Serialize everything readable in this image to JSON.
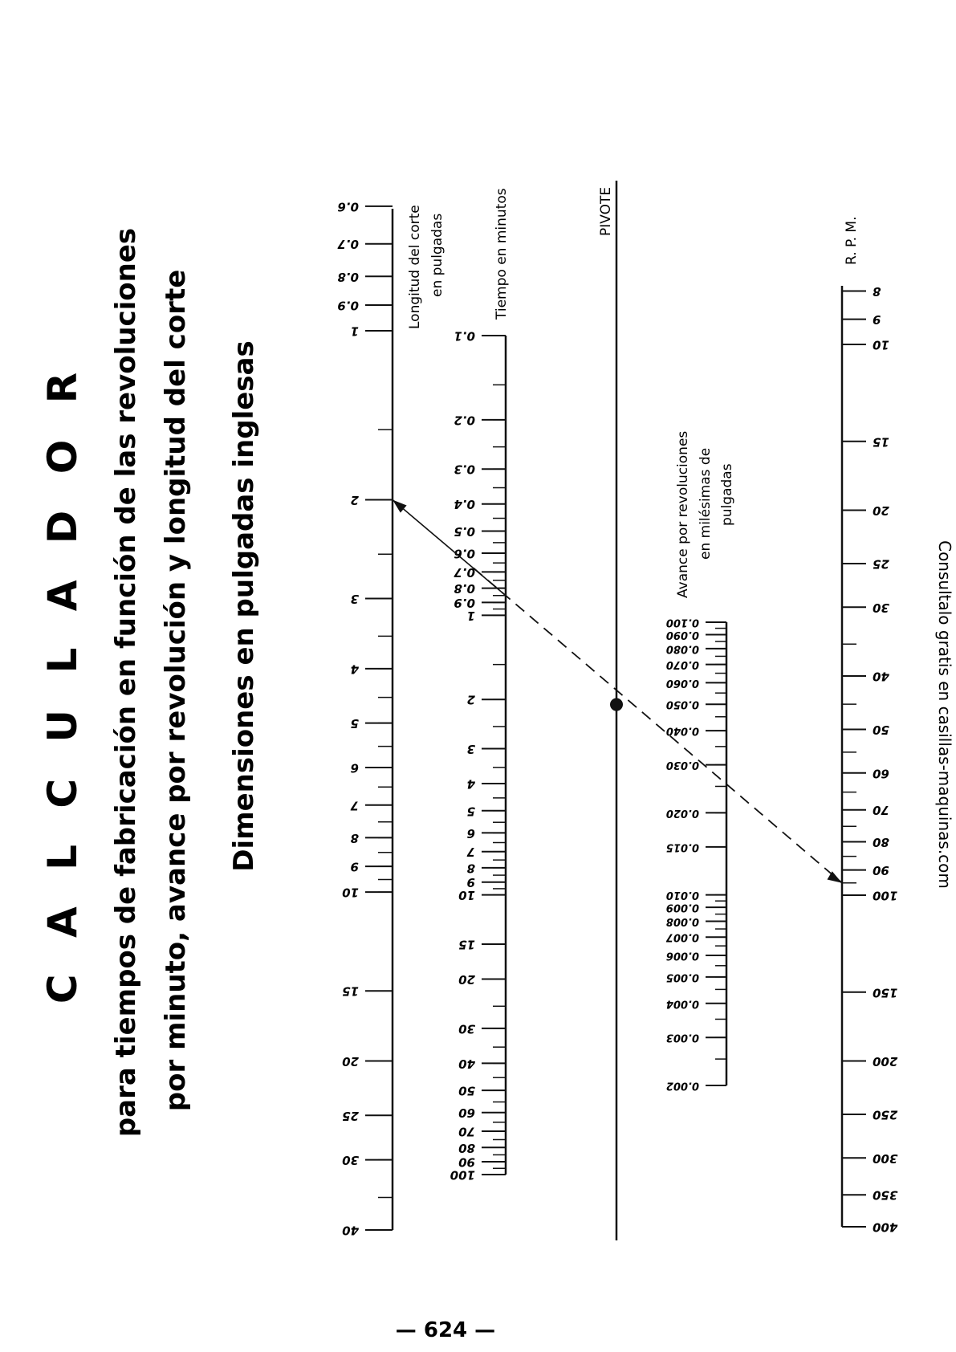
{
  "title": "C A L C U L A D O R",
  "subtitle_line1": "para tiempos de fabricación en función de las revoluciones",
  "subtitle_line2": "por minuto, avance por revolución y longitud del corte",
  "dimensions_note": "Dimensiones en pulgadas inglesas",
  "side_note": "Consultalo gratis en casillas-maquinas.com",
  "page_number": "— 624 —",
  "scales": {
    "longitud": {
      "label_line1": "Longitud del corte",
      "label_line2": "en pulgadas",
      "labels": [
        {
          "v": 0.6,
          "t": "0.6"
        },
        {
          "v": 0.7,
          "t": "0.7"
        },
        {
          "v": 0.8,
          "t": "0.8"
        },
        {
          "v": 0.9,
          "t": "0.9"
        },
        {
          "v": 1,
          "t": "1"
        },
        {
          "v": 2,
          "t": "2"
        },
        {
          "v": 3,
          "t": "3"
        },
        {
          "v": 4,
          "t": "4"
        },
        {
          "v": 5,
          "t": "5"
        },
        {
          "v": 6,
          "t": "6"
        },
        {
          "v": 7,
          "t": "7"
        },
        {
          "v": 8,
          "t": "8"
        },
        {
          "v": 9,
          "t": "9"
        },
        {
          "v": 10,
          "t": "10"
        },
        {
          "v": 15,
          "t": "15"
        },
        {
          "v": 20,
          "t": "20"
        },
        {
          "v": 25,
          "t": "25"
        },
        {
          "v": 30,
          "t": "30"
        },
        {
          "v": 40,
          "t": "40"
        }
      ]
    },
    "tiempo": {
      "label": "Tiempo en minutos",
      "labels": [
        {
          "v": 0.1,
          "t": "0.1"
        },
        {
          "v": 0.2,
          "t": "0.2"
        },
        {
          "v": 0.3,
          "t": "0.3"
        },
        {
          "v": 0.4,
          "t": "0.4"
        },
        {
          "v": 0.5,
          "t": "0.5"
        },
        {
          "v": 0.6,
          "t": "0.6"
        },
        {
          "v": 0.7,
          "t": "0.7"
        },
        {
          "v": 0.8,
          "t": "0.8"
        },
        {
          "v": 0.9,
          "t": "0.9"
        },
        {
          "v": 1,
          "t": "1"
        },
        {
          "v": 2,
          "t": "2"
        },
        {
          "v": 3,
          "t": "3"
        },
        {
          "v": 4,
          "t": "4"
        },
        {
          "v": 5,
          "t": "5"
        },
        {
          "v": 6,
          "t": "6"
        },
        {
          "v": 7,
          "t": "7"
        },
        {
          "v": 8,
          "t": "8"
        },
        {
          "v": 9,
          "t": "9"
        },
        {
          "v": 10,
          "t": "10"
        },
        {
          "v": 15,
          "t": "15"
        },
        {
          "v": 20,
          "t": "20"
        },
        {
          "v": 30,
          "t": "30"
        },
        {
          "v": 40,
          "t": "40"
        },
        {
          "v": 50,
          "t": "50"
        },
        {
          "v": 60,
          "t": "60"
        },
        {
          "v": 70,
          "t": "70"
        },
        {
          "v": 80,
          "t": "80"
        },
        {
          "v": 90,
          "t": "90"
        },
        {
          "v": 100,
          "t": "100"
        }
      ]
    },
    "pivote": {
      "label": "PIVOTE"
    },
    "avance": {
      "label_line1": "Avance por revoluciones",
      "label_line2": "en milésimas de",
      "label_line3": "pulgadas",
      "labels": [
        {
          "v": 0.1,
          "t": "0.100"
        },
        {
          "v": 0.09,
          "t": "0.090"
        },
        {
          "v": 0.08,
          "t": "0.080"
        },
        {
          "v": 0.07,
          "t": "0.070"
        },
        {
          "v": 0.06,
          "t": "0.060"
        },
        {
          "v": 0.05,
          "t": "0.050"
        },
        {
          "v": 0.04,
          "t": "0.040"
        },
        {
          "v": 0.03,
          "t": "0.030"
        },
        {
          "v": 0.02,
          "t": "0.020"
        },
        {
          "v": 0.015,
          "t": "0.015"
        },
        {
          "v": 0.01,
          "t": "0.010"
        },
        {
          "v": 0.009,
          "t": "0.009"
        },
        {
          "v": 0.008,
          "t": "0.008"
        },
        {
          "v": 0.007,
          "t": "0.007"
        },
        {
          "v": 0.006,
          "t": "0.006"
        },
        {
          "v": 0.005,
          "t": "0.005"
        },
        {
          "v": 0.004,
          "t": "0.004"
        },
        {
          "v": 0.003,
          "t": "0.003"
        },
        {
          "v": 0.002,
          "t": "0.002"
        }
      ]
    },
    "rpm": {
      "label": "R. P. M.",
      "labels": [
        {
          "v": 8,
          "t": "8"
        },
        {
          "v": 9,
          "t": "9"
        },
        {
          "v": 10,
          "t": "10"
        },
        {
          "v": 15,
          "t": "15"
        },
        {
          "v": 20,
          "t": "20"
        },
        {
          "v": 25,
          "t": "25"
        },
        {
          "v": 30,
          "t": "30"
        },
        {
          "v": 40,
          "t": "40"
        },
        {
          "v": 50,
          "t": "50"
        },
        {
          "v": 60,
          "t": "60"
        },
        {
          "v": 70,
          "t": "70"
        },
        {
          "v": 80,
          "t": "80"
        },
        {
          "v": 90,
          "t": "90"
        },
        {
          "v": 100,
          "t": "100"
        },
        {
          "v": 150,
          "t": "150"
        },
        {
          "v": 200,
          "t": "200"
        },
        {
          "v": 250,
          "t": "250"
        },
        {
          "v": 300,
          "t": "300"
        },
        {
          "v": 350,
          "t": "350"
        },
        {
          "v": 400,
          "t": "400"
        }
      ]
    }
  },
  "example": {
    "longitud": 2,
    "tiempo": 0.85,
    "avance": 0.02,
    "rpm": 95
  }
}
